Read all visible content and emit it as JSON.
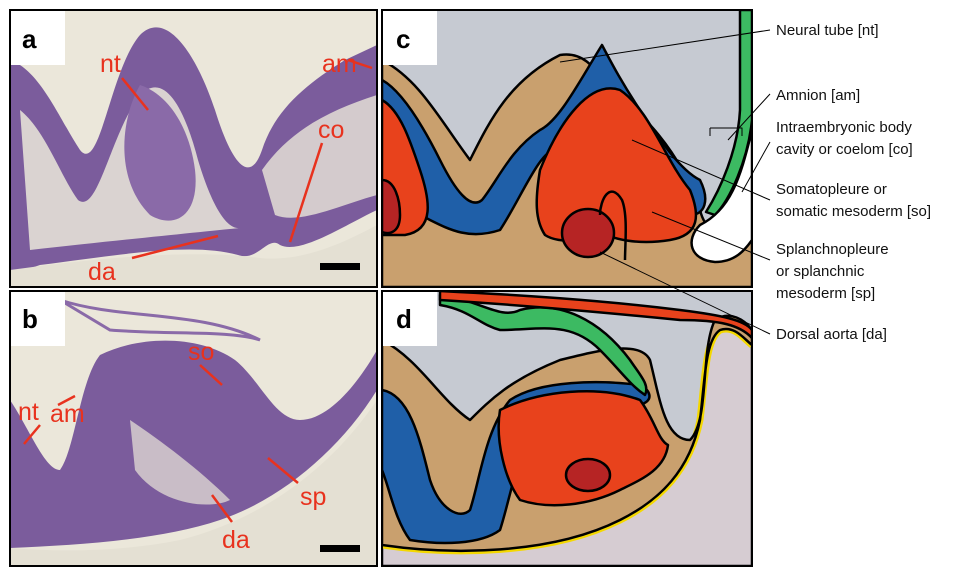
{
  "panels": [
    {
      "label": "a",
      "annotations": [
        "nt",
        "am",
        "co",
        "da"
      ]
    },
    {
      "label": "b",
      "annotations": [
        "am",
        "so",
        "nt",
        "sp",
        "da"
      ]
    },
    {
      "label": "c"
    },
    {
      "label": "d"
    }
  ],
  "legend": [
    {
      "lines": [
        "Neural tube [nt]"
      ]
    },
    {
      "lines": [
        "Amnion [am]"
      ]
    },
    {
      "lines": [
        "Intraembryonic body",
        "cavity or coelom [co]"
      ]
    },
    {
      "lines": [
        "Somatopleure or",
        "somatic mesoderm [so]"
      ]
    },
    {
      "lines": [
        "Splanchnopleure",
        "or splanchnic",
        "mesoderm [sp]"
      ]
    },
    {
      "lines": [
        "Dorsal aorta [da]"
      ]
    }
  ]
}
